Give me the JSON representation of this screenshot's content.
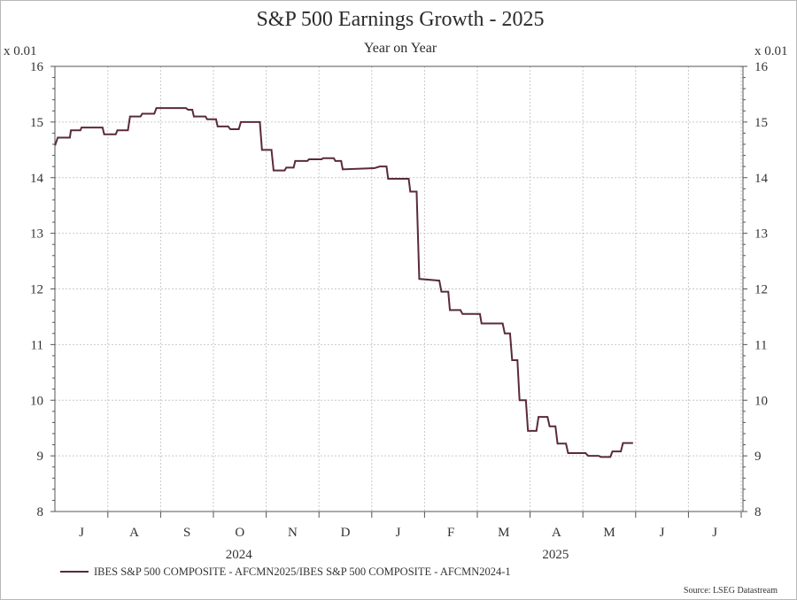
{
  "chart_data": {
    "type": "line",
    "title": "S&P 500 Earnings Growth - 2025",
    "subtitle": "Year on Year",
    "y_unit_label": "x 0.01",
    "ylim": [
      8,
      16
    ],
    "y_ticks": [
      "8",
      "9",
      "10",
      "11",
      "12",
      "13",
      "14",
      "15",
      "16"
    ],
    "x_month_labels": [
      "J",
      "A",
      "S",
      "O",
      "N",
      "D",
      "J",
      "F",
      "M",
      "A",
      "M",
      "J",
      "J"
    ],
    "year_labels": [
      "2024",
      "2025"
    ],
    "series": [
      {
        "name": "IBES S&P 500 COMPOSITE - AFCMN2025/IBES S&P 500 COMPOSITE - AFCMN2024-1",
        "color": "#5a2a3c",
        "points": [
          [
            0.0,
            14.58
          ],
          [
            0.05,
            14.72
          ],
          [
            0.28,
            14.72
          ],
          [
            0.3,
            14.85
          ],
          [
            0.48,
            14.85
          ],
          [
            0.5,
            14.9
          ],
          [
            0.9,
            14.9
          ],
          [
            0.93,
            14.78
          ],
          [
            1.15,
            14.78
          ],
          [
            1.18,
            14.85
          ],
          [
            1.38,
            14.85
          ],
          [
            1.42,
            15.1
          ],
          [
            1.62,
            15.1
          ],
          [
            1.65,
            15.15
          ],
          [
            1.88,
            15.15
          ],
          [
            1.92,
            15.25
          ],
          [
            2.48,
            15.25
          ],
          [
            2.52,
            15.22
          ],
          [
            2.6,
            15.22
          ],
          [
            2.63,
            15.1
          ],
          [
            2.85,
            15.1
          ],
          [
            2.88,
            15.05
          ],
          [
            3.05,
            15.05
          ],
          [
            3.08,
            14.92
          ],
          [
            3.28,
            14.92
          ],
          [
            3.32,
            14.87
          ],
          [
            3.48,
            14.87
          ],
          [
            3.52,
            15.0
          ],
          [
            3.88,
            15.0
          ],
          [
            3.92,
            14.5
          ],
          [
            4.1,
            14.5
          ],
          [
            4.14,
            14.13
          ],
          [
            4.35,
            14.13
          ],
          [
            4.38,
            14.18
          ],
          [
            4.52,
            14.18
          ],
          [
            4.55,
            14.3
          ],
          [
            4.78,
            14.3
          ],
          [
            4.81,
            14.33
          ],
          [
            5.05,
            14.33
          ],
          [
            5.08,
            14.35
          ],
          [
            5.28,
            14.35
          ],
          [
            5.31,
            14.3
          ],
          [
            5.42,
            14.3
          ],
          [
            5.45,
            14.15
          ],
          [
            6.05,
            14.17
          ],
          [
            6.15,
            14.2
          ],
          [
            6.28,
            14.2
          ],
          [
            6.31,
            13.98
          ],
          [
            6.7,
            13.98
          ],
          [
            6.73,
            13.75
          ],
          [
            6.85,
            13.75
          ],
          [
            6.9,
            12.18
          ],
          [
            7.28,
            12.15
          ],
          [
            7.32,
            11.95
          ],
          [
            7.45,
            11.95
          ],
          [
            7.48,
            11.62
          ],
          [
            7.68,
            11.62
          ],
          [
            7.72,
            11.55
          ],
          [
            8.05,
            11.55
          ],
          [
            8.08,
            11.38
          ],
          [
            8.48,
            11.38
          ],
          [
            8.52,
            11.2
          ],
          [
            8.62,
            11.2
          ],
          [
            8.66,
            10.72
          ],
          [
            8.76,
            10.72
          ],
          [
            8.8,
            10.0
          ],
          [
            8.92,
            10.0
          ],
          [
            8.96,
            9.45
          ],
          [
            9.12,
            9.45
          ],
          [
            9.16,
            9.7
          ],
          [
            9.33,
            9.7
          ],
          [
            9.37,
            9.53
          ],
          [
            9.48,
            9.53
          ],
          [
            9.52,
            9.22
          ],
          [
            9.68,
            9.22
          ],
          [
            9.72,
            9.05
          ],
          [
            10.05,
            9.05
          ],
          [
            10.1,
            9.0
          ],
          [
            10.3,
            9.0
          ],
          [
            10.34,
            8.98
          ],
          [
            10.52,
            8.98
          ],
          [
            10.56,
            9.08
          ],
          [
            10.72,
            9.08
          ],
          [
            10.76,
            9.23
          ],
          [
            10.95,
            9.23
          ]
        ]
      }
    ],
    "legend_position": "bottom-left",
    "grid": true
  },
  "source": "Source: LSEG Datastream"
}
